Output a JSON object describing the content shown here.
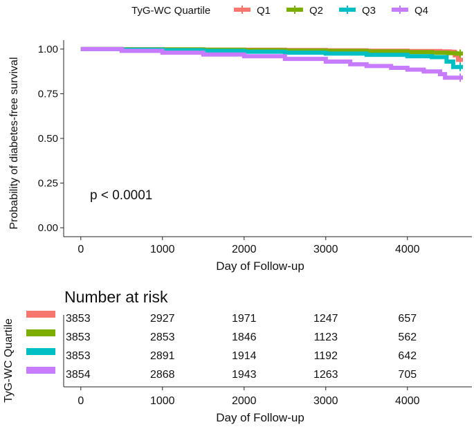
{
  "chart_data": {
    "type": "line",
    "subtype": "kaplan-meier",
    "legend": {
      "title": "TyG-WC Quartile",
      "placement": "top",
      "entries": [
        "Q1",
        "Q2",
        "Q3",
        "Q4"
      ]
    },
    "xlabel": "Day of  Follow-up",
    "ylabel": "Probability of diabetes-free survival",
    "xlim": [
      -210,
      4790
    ],
    "ylim": [
      -0.05,
      1.05
    ],
    "x_ticks": [
      0,
      1000,
      2000,
      3000,
      4000
    ],
    "x_tick_labels": [
      "0",
      "1000",
      "2000",
      "3000",
      "4000"
    ],
    "y_ticks": [
      0.0,
      0.25,
      0.5,
      0.75,
      1.0
    ],
    "y_tick_labels": [
      "0.00",
      "0.25",
      "0.50",
      "0.75",
      "1.00"
    ],
    "annotation": "p < 0.0001",
    "series": [
      {
        "name": "Q1",
        "color": "#F8766D",
        "points": [
          [
            0,
            1.0
          ],
          [
            500,
            0.999
          ],
          [
            1000,
            0.998
          ],
          [
            1500,
            0.997
          ],
          [
            2000,
            0.996
          ],
          [
            2500,
            0.995
          ],
          [
            3000,
            0.993
          ],
          [
            3500,
            0.991
          ],
          [
            4000,
            0.989
          ],
          [
            4400,
            0.987
          ],
          [
            4520,
            0.985
          ],
          [
            4580,
            0.965
          ],
          [
            4620,
            0.94
          ],
          [
            4680,
            0.94
          ]
        ]
      },
      {
        "name": "Q2",
        "color": "#7CAE00",
        "points": [
          [
            0,
            1.0
          ],
          [
            500,
            0.999
          ],
          [
            1000,
            0.998
          ],
          [
            1500,
            0.996
          ],
          [
            2000,
            0.994
          ],
          [
            2500,
            0.992
          ],
          [
            3000,
            0.99
          ],
          [
            3500,
            0.987
          ],
          [
            4000,
            0.983
          ],
          [
            4300,
            0.98
          ],
          [
            4500,
            0.977
          ],
          [
            4600,
            0.975
          ],
          [
            4680,
            0.975
          ]
        ]
      },
      {
        "name": "Q3",
        "color": "#00BFC4",
        "points": [
          [
            0,
            1.0
          ],
          [
            500,
            0.997
          ],
          [
            1000,
            0.994
          ],
          [
            1500,
            0.99
          ],
          [
            2000,
            0.985
          ],
          [
            2500,
            0.98
          ],
          [
            3000,
            0.975
          ],
          [
            3500,
            0.968
          ],
          [
            4000,
            0.96
          ],
          [
            4300,
            0.955
          ],
          [
            4480,
            0.93
          ],
          [
            4560,
            0.9
          ],
          [
            4680,
            0.9
          ]
        ]
      },
      {
        "name": "Q4",
        "color": "#C77CFF",
        "points": [
          [
            0,
            1.0
          ],
          [
            500,
            0.99
          ],
          [
            1000,
            0.98
          ],
          [
            1500,
            0.97
          ],
          [
            2000,
            0.96
          ],
          [
            2500,
            0.945
          ],
          [
            3000,
            0.93
          ],
          [
            3300,
            0.915
          ],
          [
            3500,
            0.905
          ],
          [
            3800,
            0.895
          ],
          [
            4000,
            0.885
          ],
          [
            4200,
            0.875
          ],
          [
            4400,
            0.86
          ],
          [
            4460,
            0.84
          ],
          [
            4680,
            0.84
          ]
        ]
      }
    ],
    "risk_table": {
      "title": "Number at risk",
      "ylabel": "TyG-WC Quartile",
      "xlabel": "Day of  Follow-up",
      "times": [
        0,
        1000,
        2000,
        3000,
        4000
      ],
      "rows": [
        {
          "name": "Q1",
          "color": "#F8766D",
          "values": [
            "3853",
            "2927",
            "1971",
            "1247",
            "657"
          ]
        },
        {
          "name": "Q2",
          "color": "#7CAE00",
          "values": [
            "3853",
            "2853",
            "1846",
            "1123",
            "562"
          ]
        },
        {
          "name": "Q3",
          "color": "#00BFC4",
          "values": [
            "3853",
            "2891",
            "1914",
            "1192",
            "642"
          ]
        },
        {
          "name": "Q4",
          "color": "#C77CFF",
          "values": [
            "3854",
            "2868",
            "1943",
            "1263",
            "705"
          ]
        }
      ]
    }
  }
}
